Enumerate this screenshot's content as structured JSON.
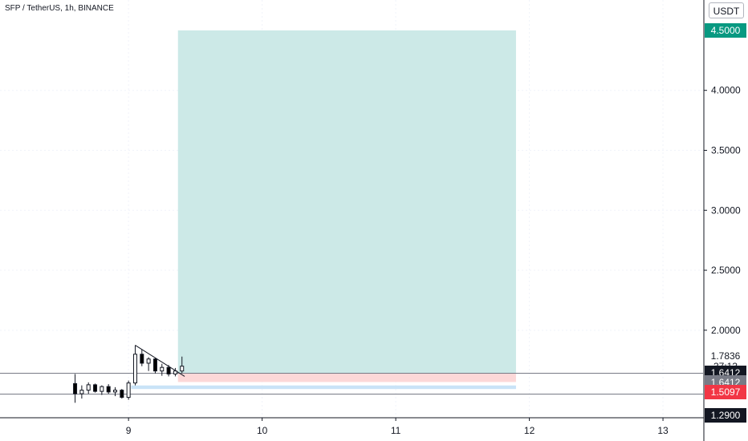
{
  "header": {
    "symbol_title": "SFP / TetherUS, 1h, BINANCE"
  },
  "toolbar": {
    "currency_label": "USDT"
  },
  "colors": {
    "up": "#26a69a",
    "down": "#000000",
    "profit_zone": "#cce9e7",
    "stop_zone": "#fcd8d8",
    "blue_band": "#c9e3f7",
    "green_tag": "#089981",
    "red_tag": "#f23645",
    "black_tag": "#131722",
    "gray_tag": "#787b86"
  },
  "chart_data": {
    "type": "candlestick",
    "y_axis": {
      "min": 1.25,
      "max": 4.7,
      "ticks": [
        2.0,
        2.5,
        3.0,
        3.5,
        4.0
      ]
    },
    "x_axis": {
      "min": 8.05,
      "max": 13.3,
      "ticks": [
        9,
        10,
        11,
        12,
        13
      ],
      "tick_labels": [
        "9",
        "10",
        "11",
        "12",
        "13"
      ]
    },
    "price_tags": [
      {
        "label": "4.5000",
        "value": 4.5,
        "style": "green_tag"
      },
      {
        "label": "1.7836",
        "value": 1.7836,
        "style": "plain"
      },
      {
        "label": "37:13",
        "value": 1.6996,
        "style": "plain"
      },
      {
        "label": "1.6412",
        "value": 1.6412,
        "style": "black_tag"
      },
      {
        "label": "1.6412",
        "value": 1.5615,
        "style": "gray_tag"
      },
      {
        "label": "1.5097",
        "value": 1.4818,
        "style": "red_tag"
      },
      {
        "label": "1.2900",
        "value": 1.29,
        "style": "black_tag"
      }
    ],
    "horizontal_lines": [
      1.6412,
      1.4675
    ],
    "position": {
      "x_start": 9.37,
      "x_end": 11.9,
      "entry": 1.6412,
      "target": 4.5,
      "stop": 1.568
    },
    "blue_band": {
      "x_start": 9.02,
      "x_end": 11.9,
      "top": 1.5393,
      "bottom": 1.5097
    },
    "trend_line": {
      "x1": 9.05,
      "y1": 1.875,
      "x2": 9.42,
      "y2": 1.615
    },
    "candles": [
      {
        "x": 8.6,
        "o": 1.555,
        "h": 1.635,
        "l": 1.395,
        "c": 1.47
      },
      {
        "x": 8.65,
        "o": 1.47,
        "h": 1.54,
        "l": 1.43,
        "c": 1.5
      },
      {
        "x": 8.7,
        "o": 1.5,
        "h": 1.565,
        "l": 1.47,
        "c": 1.545
      },
      {
        "x": 8.75,
        "o": 1.545,
        "h": 1.555,
        "l": 1.48,
        "c": 1.49
      },
      {
        "x": 8.8,
        "o": 1.49,
        "h": 1.54,
        "l": 1.46,
        "c": 1.53
      },
      {
        "x": 8.85,
        "o": 1.53,
        "h": 1.55,
        "l": 1.47,
        "c": 1.485
      },
      {
        "x": 8.9,
        "o": 1.485,
        "h": 1.525,
        "l": 1.45,
        "c": 1.5
      },
      {
        "x": 8.95,
        "o": 1.5,
        "h": 1.51,
        "l": 1.43,
        "c": 1.44
      },
      {
        "x": 9.0,
        "o": 1.44,
        "h": 1.58,
        "l": 1.42,
        "c": 1.56
      },
      {
        "x": 9.05,
        "o": 1.56,
        "h": 1.875,
        "l": 1.54,
        "c": 1.8
      },
      {
        "x": 9.1,
        "o": 1.8,
        "h": 1.84,
        "l": 1.7,
        "c": 1.725
      },
      {
        "x": 9.15,
        "o": 1.725,
        "h": 1.775,
        "l": 1.66,
        "c": 1.76
      },
      {
        "x": 9.2,
        "o": 1.76,
        "h": 1.77,
        "l": 1.64,
        "c": 1.66
      },
      {
        "x": 9.25,
        "o": 1.66,
        "h": 1.72,
        "l": 1.62,
        "c": 1.69
      },
      {
        "x": 9.3,
        "o": 1.69,
        "h": 1.71,
        "l": 1.615,
        "c": 1.635
      },
      {
        "x": 9.35,
        "o": 1.635,
        "h": 1.685,
        "l": 1.615,
        "c": 1.66
      },
      {
        "x": 9.4,
        "o": 1.66,
        "h": 1.78,
        "l": 1.64,
        "c": 1.7
      }
    ]
  }
}
